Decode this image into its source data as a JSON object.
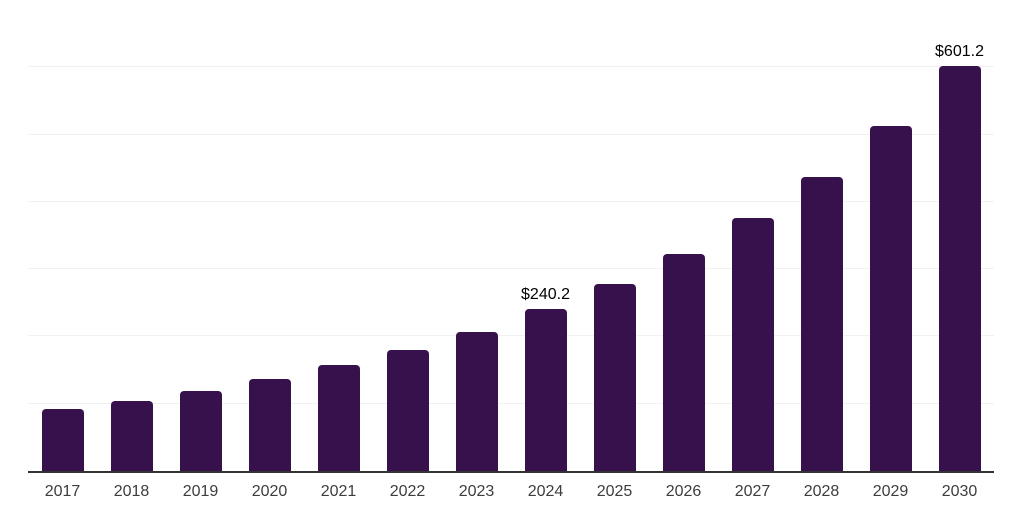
{
  "chart_data": {
    "type": "bar",
    "categories": [
      "2017",
      "2018",
      "2019",
      "2020",
      "2021",
      "2022",
      "2023",
      "2024",
      "2025",
      "2026",
      "2027",
      "2028",
      "2029",
      "2030"
    ],
    "values": [
      92,
      104.5,
      119.5,
      136.5,
      157,
      180.5,
      207,
      240.2,
      277.5,
      322,
      375.5,
      437,
      513,
      601.2
    ],
    "labeled_points": [
      {
        "category": "2024",
        "label": "$240.2"
      },
      {
        "category": "2030",
        "label": "$601.2"
      }
    ],
    "ylim": [
      0,
      700
    ],
    "gridline_step": 100,
    "grid": "horizontal",
    "y_axis_tick_labels_visible": false,
    "legend": "none",
    "colors": {
      "bar": "#36114c",
      "axis_line": "#333333",
      "gridline": "#f1f1f1",
      "value_label": "#000000",
      "tick_label": "#3d3d3d",
      "background": "#ffffff"
    }
  }
}
